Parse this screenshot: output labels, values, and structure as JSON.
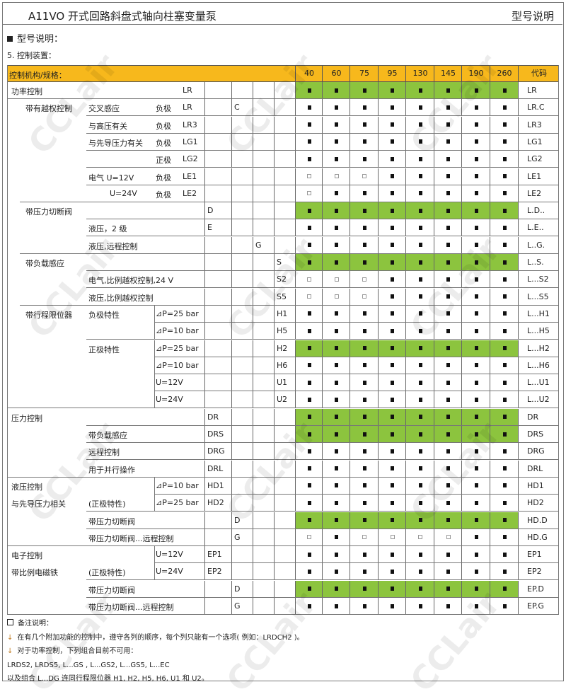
{
  "header": {
    "title": "A11VO 开式回路斜盘式轴向柱塞变量泵",
    "right": "型号说明"
  },
  "section": "型号说明：",
  "subsection": "5.  控制装置：",
  "colors": {
    "header": "#f7b81c",
    "highlight": "#8cc43e"
  },
  "table": {
    "header_label": "控制机构/规格：",
    "sizes": [
      "40",
      "60",
      "75",
      "95",
      "130",
      "145",
      "190",
      "260"
    ],
    "code_label": "代码",
    "rows": [
      {
        "t1": "功率控制",
        "t5": "LR",
        "code": "LR",
        "green": true,
        "marks": "ffffffff"
      },
      {
        "t2": "带有越权控制",
        "t3": "交叉感应",
        "t4": "负极",
        "t5": "LR",
        "b": "C",
        "code": "LR.C",
        "marks": "ffffffff"
      },
      {
        "t3": "与高压有关",
        "t4": "负极",
        "t5": "LR3",
        "code": "LR3",
        "marks": "ffffffff"
      },
      {
        "t3": "与先导压力有关",
        "t4": "负极",
        "t5": "LG1",
        "code": "LG1",
        "marks": "ffffffff"
      },
      {
        "t4": "正极",
        "t5": "LG2",
        "code": "LG2",
        "marks": "ffffffff"
      },
      {
        "t3": "电气 U=12V",
        "t4": "负极",
        "t5": "LE1",
        "code": "LE1",
        "marks": "ooofffff"
      },
      {
        "t3b": "U=24V",
        "t4": "负极",
        "t5": "LE2",
        "code": "LE2",
        "marks": "offfffff"
      },
      {
        "t2": "带压力切断阀",
        "a": "D",
        "code": "L.D..",
        "green": true,
        "marks": "ffffffff"
      },
      {
        "t3": "液压，2 级",
        "a": "E",
        "code": "L.E..",
        "marks": "ffffffff"
      },
      {
        "t3": "液压,远程控制",
        "c": "G",
        "code": "L..G.",
        "marks": "ffffffff"
      },
      {
        "t2": "带负载感应",
        "d": "S",
        "code": "L..S.",
        "green": true,
        "marks": "ffffffff"
      },
      {
        "t3": "电气,比例越权控制,24 V",
        "d": "S2",
        "code": "L...S2",
        "marks": "ooofffff"
      },
      {
        "t3": "液压,比例越权控制",
        "d": "S5",
        "code": "L...S5",
        "marks": "ooofffff"
      },
      {
        "t2": "带行程限位器",
        "t3": "负极特性",
        "t4": "⊿P=25 bar",
        "d": "H1",
        "code": "L...H1",
        "marks": "ffffffff"
      },
      {
        "t4": "⊿P=10 bar",
        "d": "H5",
        "code": "L...H5",
        "marks": "ffffffff"
      },
      {
        "t3": "正极特性",
        "t4": "⊿P=25 bar",
        "d": "H2",
        "code": "L...H2",
        "green": true,
        "marks": "ffffffff"
      },
      {
        "t4": "⊿P=10 bar",
        "d": "H6",
        "code": "L...H6",
        "marks": "ffffffff"
      },
      {
        "t4": "U=12V",
        "d": "U1",
        "code": "L...U1",
        "marks": "ffffffff"
      },
      {
        "t4": "U=24V",
        "d": "U2",
        "code": "L...U2",
        "marks": "ffffffff"
      },
      {
        "t1": "压力控制",
        "a": "DR",
        "code": "DR",
        "green": true,
        "marks": "ffffffff"
      },
      {
        "t3": "带负载感应",
        "a": "DRS",
        "code": "DRS",
        "green": true,
        "marks": "ffffffff"
      },
      {
        "t3": "远程控制",
        "a": "DRG",
        "code": "DRG",
        "marks": "ffffffff"
      },
      {
        "t3": "用于并行操作",
        "a": "DRL",
        "code": "DRL",
        "marks": "ffffffff"
      },
      {
        "t1": "液压控制",
        "t4": "⊿P=10 bar",
        "a": "HD1",
        "code": "HD1",
        "marks": "ffffffff"
      },
      {
        "t1": "与先导压力相关",
        "t3": "(正极特性)",
        "t4": "⊿P=25 bar",
        "a": "HD2",
        "code": "HD2",
        "marks": "ffffffff"
      },
      {
        "t3": "带压力切断阀",
        "b": "D",
        "code": "HD.D",
        "green": true,
        "marks": "ffffffff"
      },
      {
        "t3": "带压力切断阀...远程控制",
        "b": "G",
        "code": "HD.G",
        "marks": "ofooooff"
      },
      {
        "t1": "电子控制",
        "t4": "U=12V",
        "a": "EP1",
        "code": "EP1",
        "marks": "ffffffff"
      },
      {
        "t1": "带比例电磁铁",
        "t3": "(正极特性)",
        "t4": "U=24V",
        "a": "EP2",
        "code": "EP2",
        "marks": "ffffffff"
      },
      {
        "t3": "带压力切断阀",
        "b": "D",
        "code": "EP.D",
        "green": true,
        "marks": "ffffffff"
      },
      {
        "t3": "带压力切断阀...远程控制",
        "b": "G",
        "code": "EP.G",
        "marks": "ffffffff"
      }
    ]
  },
  "notes": {
    "title": "备注说明：",
    "items": [
      "在有几个附加功能的控制中，遵守各列的顺序，每个列只能有一个选项( 例如：LRDCH2 )。",
      "对于功率控制，下列组合目前不可用："
    ],
    "lines": [
      "LRDS2, LRDS5, L...GS , L...GS2, L...GS5, L...EC",
      "以及组合 L...DG 连同行程限位器  H1, H2, H5, H6, U1  和 U2。"
    ]
  },
  "watermark": "CCLair",
  "legend": {
    "filled": "filled-square = available",
    "hollow": "hollow-square = in preparation"
  }
}
